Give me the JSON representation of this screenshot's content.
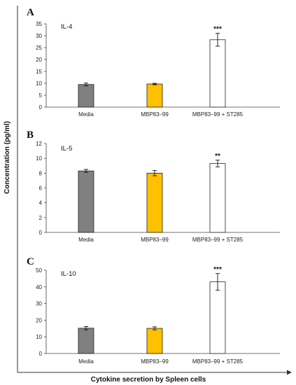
{
  "chart_data": [
    {
      "type": "bar",
      "panel": "A",
      "title": "IL-4",
      "categories": [
        "Media",
        "MBP83–99",
        "MBP83–99 + ST285"
      ],
      "values": [
        9.5,
        9.7,
        28.3
      ],
      "errors": [
        0.6,
        0.3,
        2.7
      ],
      "significance": [
        "",
        "",
        "***"
      ],
      "bar_colors": [
        "#808080",
        "#FFC000",
        "#FFFFFF"
      ],
      "ylim": [
        0,
        35
      ],
      "yticks": [
        0,
        5,
        10,
        15,
        20,
        25,
        30,
        35
      ]
    },
    {
      "type": "bar",
      "panel": "B",
      "title": "IL-5",
      "categories": [
        "Media",
        "MBP83–99",
        "MBP83–99 + ST285"
      ],
      "values": [
        8.3,
        8.0,
        9.3
      ],
      "errors": [
        0.2,
        0.35,
        0.45
      ],
      "significance": [
        "",
        "",
        "**"
      ],
      "bar_colors": [
        "#808080",
        "#FFC000",
        "#FFFFFF"
      ],
      "ylim": [
        0,
        12
      ],
      "yticks": [
        0,
        2,
        4,
        6,
        8,
        10,
        12
      ]
    },
    {
      "type": "bar",
      "panel": "C",
      "title": "IL-10",
      "categories": [
        "Media",
        "MBP83–99",
        "MBP83–99 + ST285"
      ],
      "values": [
        15.2,
        15.1,
        43.0
      ],
      "errors": [
        1.0,
        0.9,
        5.0
      ],
      "significance": [
        "",
        "",
        "***"
      ],
      "bar_colors": [
        "#808080",
        "#FFC000",
        "#FFFFFF"
      ],
      "ylim": [
        0,
        50
      ],
      "yticks": [
        0,
        10,
        20,
        30,
        40,
        50
      ]
    }
  ],
  "ylabel": "Concentration (pg/ml)",
  "xlabel": "Cytokine secretion by Spleen cells"
}
